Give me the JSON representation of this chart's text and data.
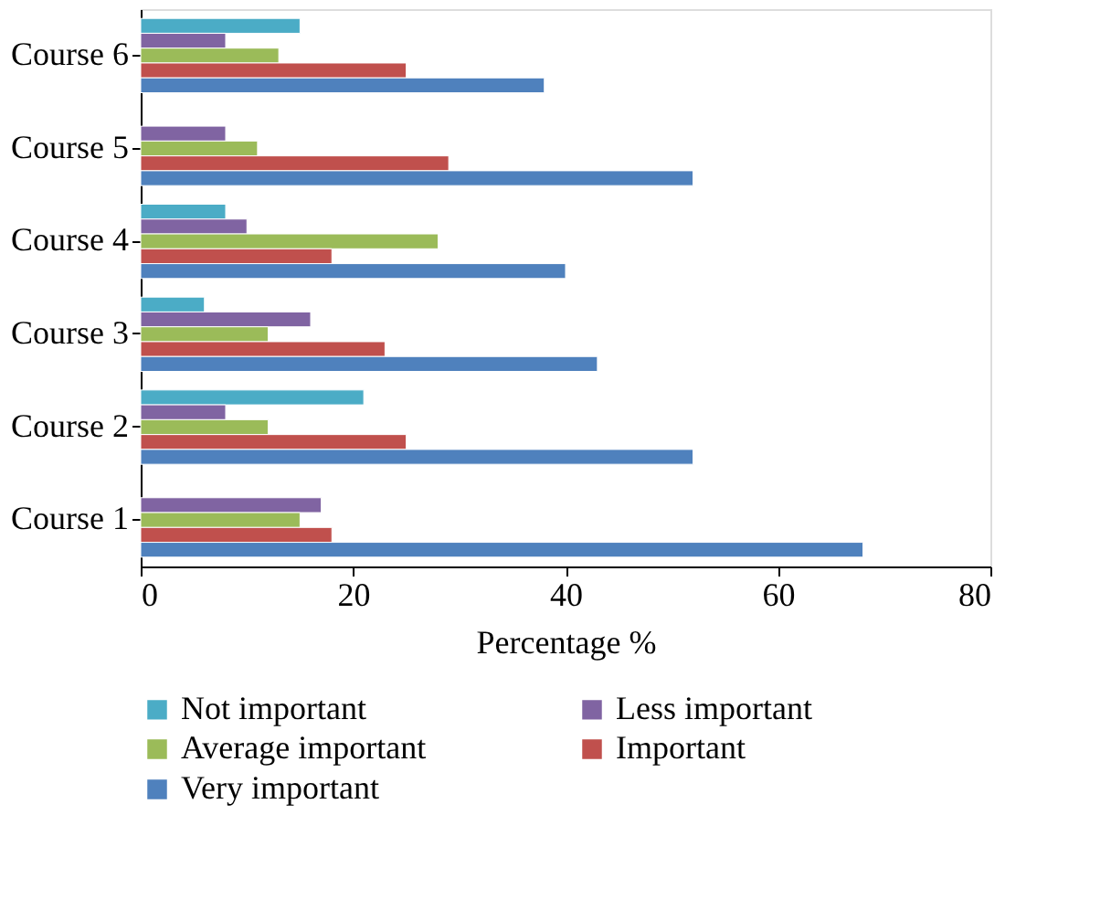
{
  "chart_data": {
    "type": "bar",
    "orientation": "horizontal",
    "xlabel": "Percentage %",
    "categories": [
      "Course 6",
      "Course 5",
      "Course 4",
      "Course 3",
      "Course 2",
      "Course 1"
    ],
    "series": [
      {
        "name": "Not important",
        "color": "#4bacc6",
        "values": [
          15,
          null,
          8,
          6,
          21,
          null
        ]
      },
      {
        "name": "Less important",
        "color": "#8064a2",
        "values": [
          8,
          8,
          10,
          16,
          8,
          17
        ]
      },
      {
        "name": "Average important",
        "color": "#9bbb59",
        "values": [
          13,
          11,
          28,
          12,
          12,
          15
        ]
      },
      {
        "name": "Important",
        "color": "#c0504d",
        "values": [
          25,
          29,
          18,
          23,
          25,
          18
        ]
      },
      {
        "name": "Very important",
        "color": "#4f81bd",
        "values": [
          38,
          52,
          40,
          43,
          52,
          68
        ]
      }
    ],
    "xlim": [
      0,
      80
    ],
    "xticks": [
      0,
      20,
      40,
      60,
      80
    ],
    "grid": false,
    "legend": "bottom"
  }
}
